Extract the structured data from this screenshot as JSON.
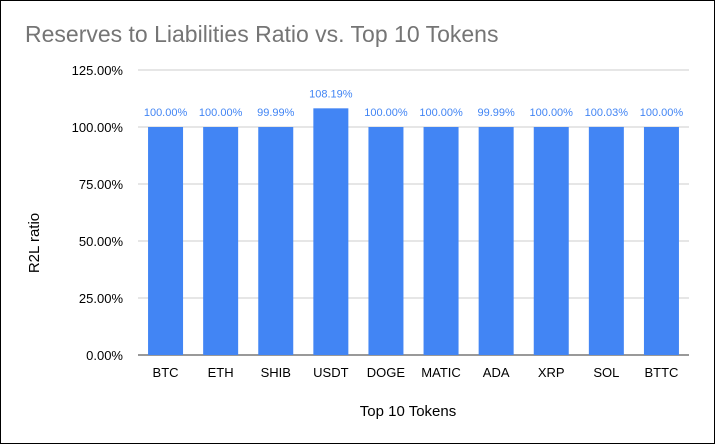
{
  "chart_data": {
    "type": "bar",
    "title": "Reserves to Liabilities Ratio vs. Top 10 Tokens",
    "xlabel": "Top 10 Tokens",
    "ylabel": "R2L ratio",
    "categories": [
      "BTC",
      "ETH",
      "SHIB",
      "USDT",
      "DOGE",
      "MATIC",
      "ADA",
      "XRP",
      "SOL",
      "BTTC"
    ],
    "values": [
      100.0,
      100.0,
      99.99,
      108.19,
      100.0,
      100.0,
      99.99,
      100.0,
      100.03,
      100.0
    ],
    "data_labels": [
      "100.00%",
      "100.00%",
      "99.99%",
      "108.19%",
      "100.00%",
      "100.00%",
      "99.99%",
      "100.00%",
      "100.03%",
      "100.00%"
    ],
    "ylim": [
      0,
      125
    ],
    "yticks": [
      0,
      25,
      50,
      75,
      100,
      125
    ],
    "ytick_labels": [
      "0.00%",
      "25.00%",
      "50.00%",
      "75.00%",
      "100.00%",
      "125.00%"
    ],
    "grid": true,
    "legend": "none",
    "colors": {
      "bar": "#4285f4",
      "data_label": "#4285f4",
      "title": "#757575",
      "grid": "#cccccc",
      "axis_text": "#000000"
    }
  }
}
